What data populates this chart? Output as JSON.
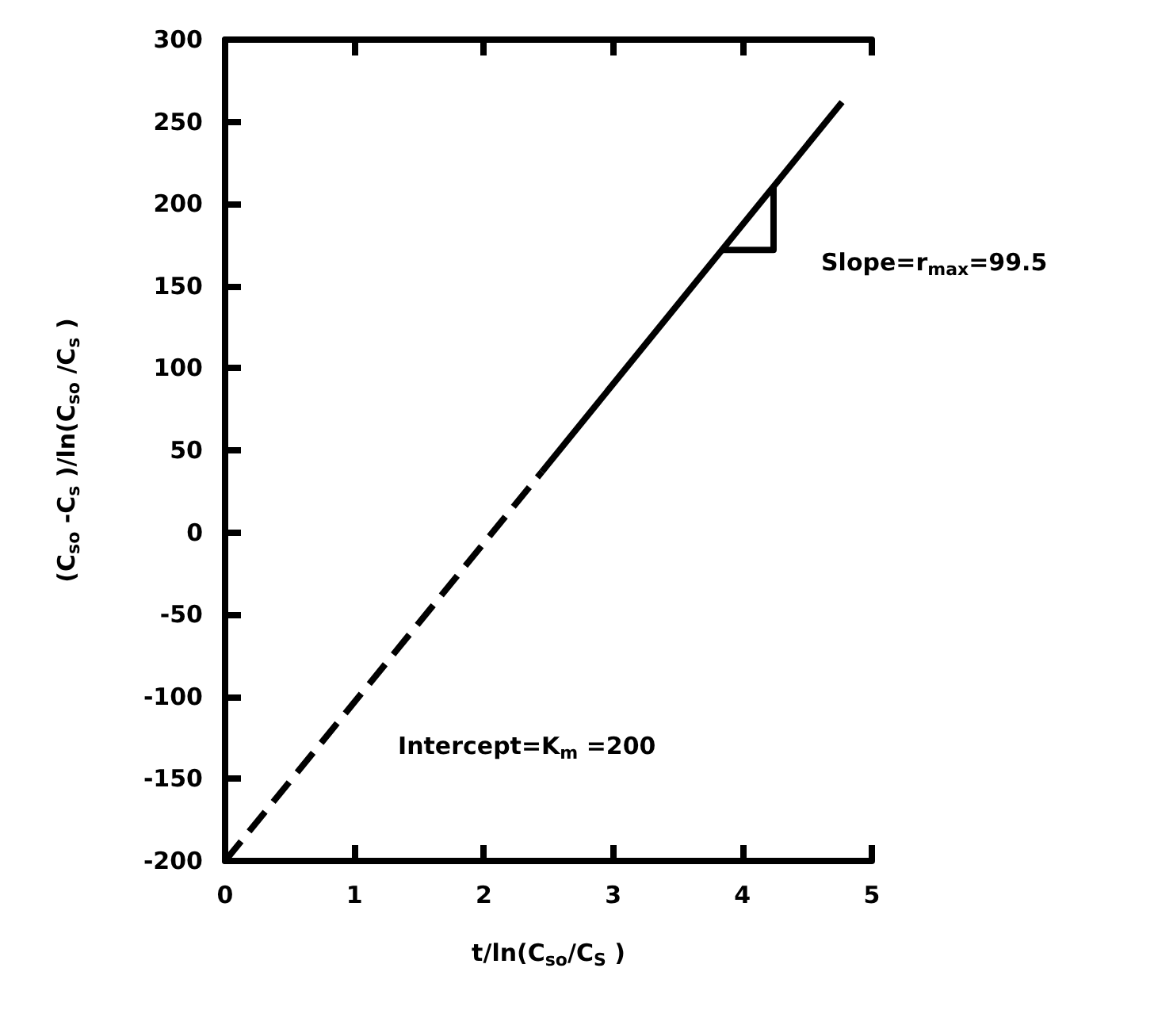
{
  "chart_data": {
    "type": "line",
    "xlabel": "t/ln(C$_{so}$/C$_{S}$ )",
    "ylabel": "(C$_{so}$ -C$_{s}$ )/ln(C$_{so}$ /C$_{s}$ )",
    "series": [
      {
        "x": [
          0,
          2.45
        ],
        "values": [
          -200,
          37
        ],
        "color": "#000000",
        "line_style": "dashed"
      },
      {
        "x": [
          2.45,
          4.77
        ],
        "values": [
          37,
          262
        ],
        "color": "#000000",
        "line_style": "solid"
      },
      {
        "x": [
          3.83,
          4.24,
          4.24
        ],
        "values": [
          172,
          172,
          211
        ],
        "color": "#000000",
        "line_style": "solid"
      }
    ],
    "annotations": [
      "Slope=r$_{max}$=99.5",
      "Intercept=K$_{m}$ =200"
    ],
    "xlim": [
      0,
      5
    ],
    "xticks": [
      0,
      1,
      2,
      3,
      4,
      5
    ],
    "ylim": [
      -200,
      300
    ],
    "yticks": [
      -200,
      -150,
      -100,
      -50,
      0,
      50,
      100,
      150,
      200,
      250,
      300
    ],
    "grid": false,
    "marker": "none"
  }
}
